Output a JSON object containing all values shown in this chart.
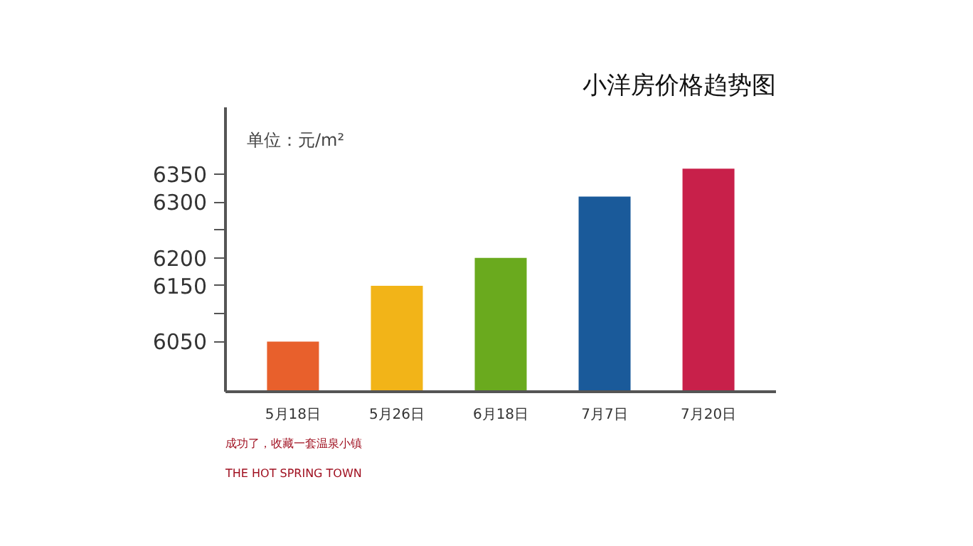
{
  "chart_data": {
    "type": "bar",
    "title": "小洋房价格趋势图",
    "ylabel": "单位：元/m²",
    "categories": [
      "5月18日",
      "5月26日",
      "6月18日",
      "7月7日",
      "7月20日"
    ],
    "values": [
      6050,
      6150,
      6200,
      6310,
      6360
    ],
    "colors": [
      "#e8602c",
      "#f2b418",
      "#6aaa1e",
      "#1a5a9a",
      "#c8204a"
    ],
    "ylim": [
      5960,
      6470
    ],
    "yticks": [
      6050,
      {
        "value": 6100,
        "label": null
      },
      6150,
      6200,
      {
        "value": 6250,
        "label": null
      },
      6300,
      6350
    ],
    "grid": false,
    "annotations": [
      "成功了，收藏一套温泉小镇",
      "THE HOT SPRING TOWN"
    ]
  }
}
